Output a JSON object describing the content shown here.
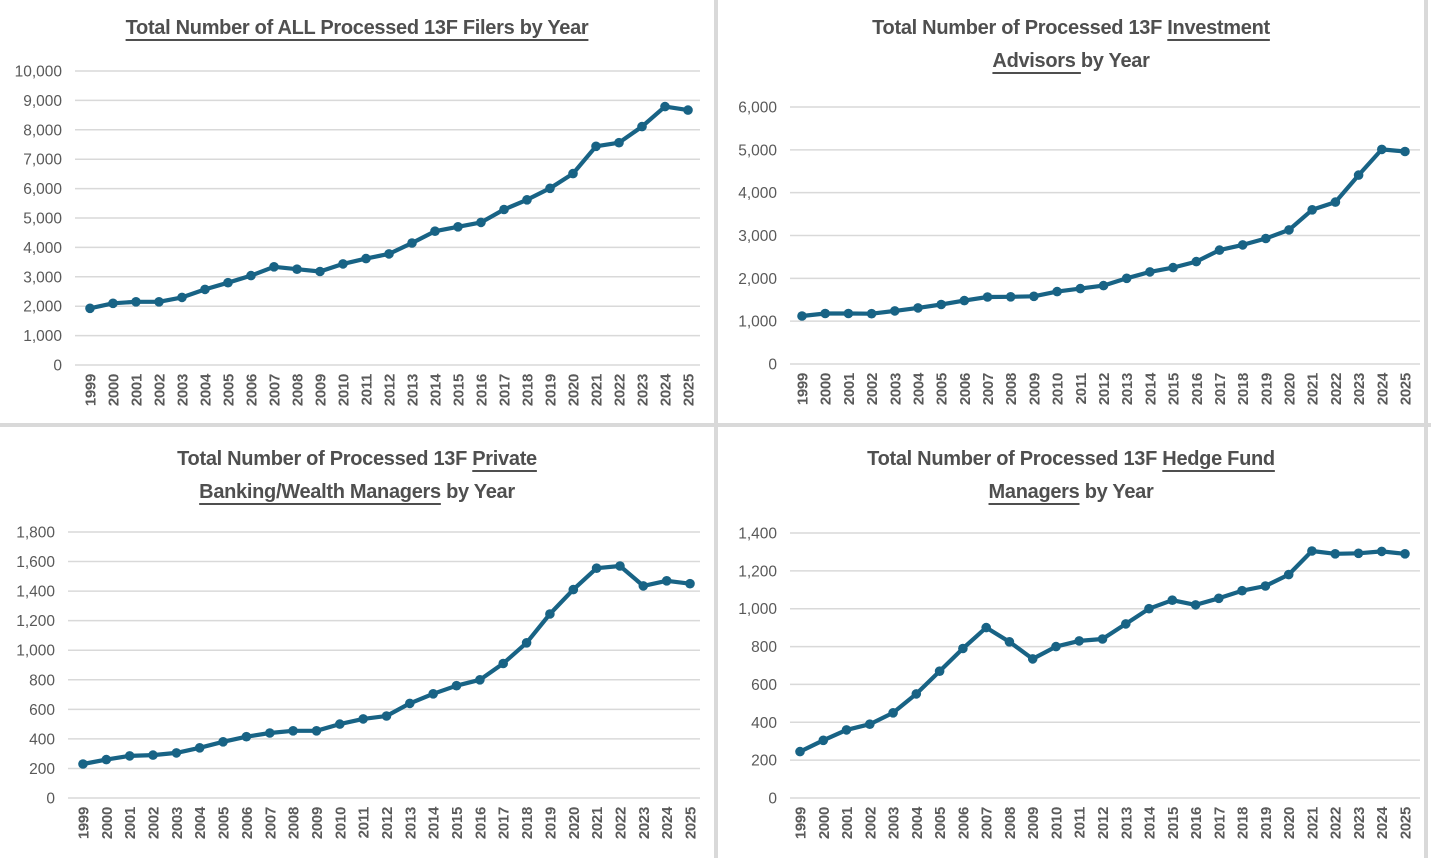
{
  "accent_color": "#186385",
  "grid_color": "#d9d9d9",
  "axis_text_color": "#595959",
  "title_color": "#4f4f4f",
  "chart_data": [
    {
      "type": "line",
      "title": "Total Number of ALL Processed 13F Filers by Year",
      "title_lines": [
        [
          {
            "text": "Total Number of ALL Processed 13F Filers by Year",
            "underline": true
          }
        ]
      ],
      "categories": [
        "1999",
        "2000",
        "2001",
        "2002",
        "2003",
        "2004",
        "2005",
        "2006",
        "2007",
        "2008",
        "2009",
        "2010",
        "2011",
        "2012",
        "2013",
        "2014",
        "2015",
        "2016",
        "2017",
        "2018",
        "2019",
        "2020",
        "2021",
        "2022",
        "2023",
        "2024",
        "2025"
      ],
      "values": [
        1930,
        2100,
        2150,
        2150,
        2300,
        2570,
        2800,
        3040,
        3340,
        3260,
        3180,
        3440,
        3620,
        3780,
        4150,
        4550,
        4700,
        4850,
        5290,
        5620,
        6010,
        6510,
        7440,
        7560,
        8110,
        8790,
        8670
      ],
      "ylim": [
        0,
        10000
      ],
      "ystep": 1000,
      "yticks": [
        "0",
        "1,000",
        "2,000",
        "3,000",
        "4,000",
        "5,000",
        "6,000",
        "7,000",
        "8,000",
        "9,000",
        "10,000"
      ],
      "xlabel": "",
      "ylabel": "",
      "grid": true,
      "legend": "none",
      "marker": "circle"
    },
    {
      "type": "line",
      "title": "Total Number of Processed 13F Investment Advisors by Year",
      "title_lines": [
        [
          {
            "text": "Total Number of Processed 13F ",
            "underline": false
          },
          {
            "text": "Investment",
            "underline": true
          }
        ],
        [
          {
            "text": "Advisors ",
            "underline": true
          },
          {
            "text": "by Year",
            "underline": false
          }
        ]
      ],
      "categories": [
        "1999",
        "2000",
        "2001",
        "2002",
        "2003",
        "2004",
        "2005",
        "2006",
        "2007",
        "2008",
        "2009",
        "2010",
        "2011",
        "2012",
        "2013",
        "2014",
        "2015",
        "2016",
        "2017",
        "2018",
        "2019",
        "2020",
        "2021",
        "2022",
        "2023",
        "2024",
        "2025"
      ],
      "values": [
        1120,
        1180,
        1180,
        1175,
        1240,
        1310,
        1390,
        1480,
        1565,
        1570,
        1580,
        1690,
        1760,
        1830,
        2000,
        2150,
        2250,
        2390,
        2660,
        2780,
        2930,
        3130,
        3600,
        3780,
        4410,
        5010,
        4960
      ],
      "ylim": [
        0,
        6000
      ],
      "ystep": 1000,
      "yticks": [
        "0",
        "1,000",
        "2,000",
        "3,000",
        "4,000",
        "5,000",
        "6,000"
      ],
      "xlabel": "",
      "ylabel": "",
      "grid": true,
      "legend": "none",
      "marker": "circle"
    },
    {
      "type": "line",
      "title": "Total Number of Processed 13F Private Banking/Wealth Managers by Year",
      "title_lines": [
        [
          {
            "text": "Total Number of Processed 13F ",
            "underline": false
          },
          {
            "text": "Private",
            "underline": true
          }
        ],
        [
          {
            "text": "Banking/Wealth Managers",
            "underline": true
          },
          {
            "text": " by Year",
            "underline": false
          }
        ]
      ],
      "categories": [
        "1999",
        "2000",
        "2001",
        "2002",
        "2003",
        "2004",
        "2005",
        "2006",
        "2007",
        "2008",
        "2009",
        "2010",
        "2011",
        "2012",
        "2013",
        "2014",
        "2015",
        "2016",
        "2017",
        "2018",
        "2019",
        "2020",
        "2021",
        "2022",
        "2023",
        "2024",
        "2025"
      ],
      "values": [
        230,
        260,
        285,
        290,
        305,
        340,
        380,
        415,
        440,
        455,
        455,
        500,
        535,
        555,
        640,
        705,
        760,
        800,
        910,
        1050,
        1245,
        1410,
        1555,
        1570,
        1435,
        1470,
        1450
      ],
      "ylim": [
        0,
        1800
      ],
      "ystep": 200,
      "yticks": [
        "0",
        "200",
        "400",
        "600",
        "800",
        "1,000",
        "1,200",
        "1,400",
        "1,600",
        "1,800"
      ],
      "xlabel": "",
      "ylabel": "",
      "grid": true,
      "legend": "none",
      "marker": "circle"
    },
    {
      "type": "line",
      "title": "Total Number of Processed 13F Hedge Fund Managers by Year",
      "title_lines": [
        [
          {
            "text": "Total Number of Processed 13F ",
            "underline": false
          },
          {
            "text": "Hedge Fund",
            "underline": true
          }
        ],
        [
          {
            "text": "Managers",
            "underline": true
          },
          {
            "text": " by Year",
            "underline": false
          }
        ]
      ],
      "categories": [
        "1999",
        "2000",
        "2001",
        "2002",
        "2003",
        "2004",
        "2005",
        "2006",
        "2007",
        "2008",
        "2009",
        "2010",
        "2011",
        "2012",
        "2013",
        "2014",
        "2015",
        "2016",
        "2017",
        "2018",
        "2019",
        "2020",
        "2021",
        "2022",
        "2023",
        "2024",
        "2025"
      ],
      "values": [
        245,
        305,
        360,
        390,
        450,
        550,
        670,
        790,
        900,
        825,
        735,
        800,
        830,
        840,
        920,
        1000,
        1045,
        1020,
        1055,
        1095,
        1120,
        1180,
        1305,
        1290,
        1293,
        1303,
        1290
      ],
      "ylim": [
        0,
        1400
      ],
      "ystep": 200,
      "yticks": [
        "0",
        "200",
        "400",
        "600",
        "800",
        "1,000",
        "1,200",
        "1,400"
      ],
      "xlabel": "",
      "ylabel": "",
      "grid": true,
      "legend": "none",
      "marker": "circle"
    }
  ]
}
